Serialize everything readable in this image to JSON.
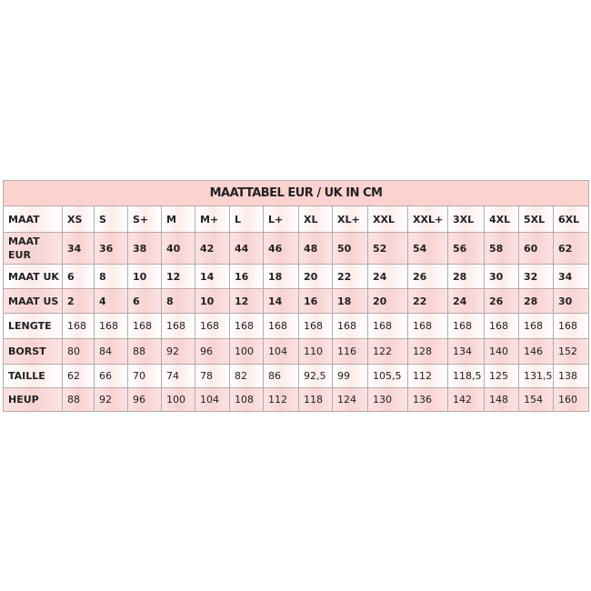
{
  "title": "MAATTABEL EUR / UK IN CM",
  "colors": {
    "title_bg": "#fcd2d1",
    "row_pink": "#f7d3d2",
    "row_light": "#fdeceb",
    "border": "#b9a9a8"
  },
  "rows": [
    {
      "label": "MAAT",
      "values": [
        "XS",
        "S",
        "S+",
        "M",
        "M+",
        "L",
        "L+",
        "XL",
        "XL+",
        "XXL",
        "XXL+",
        "3XL",
        "4XL",
        "5XL",
        "6XL"
      ]
    },
    {
      "label": "MAAT EUR",
      "values": [
        "34",
        "36",
        "38",
        "40",
        "42",
        "44",
        "46",
        "48",
        "50",
        "52",
        "54",
        "56",
        "58",
        "60",
        "62"
      ]
    },
    {
      "label": "MAAT UK",
      "values": [
        "6",
        "8",
        "10",
        "12",
        "14",
        "16",
        "18",
        "20",
        "22",
        "24",
        "26",
        "28",
        "30",
        "32",
        "34"
      ]
    },
    {
      "label": "MAAT US",
      "values": [
        "2",
        "4",
        "6",
        "8",
        "10",
        "12",
        "14",
        "16",
        "18",
        "20",
        "22",
        "24",
        "26",
        "28",
        "30"
      ]
    },
    {
      "label": "LENGTE",
      "values": [
        "168",
        "168",
        "168",
        "168",
        "168",
        "168",
        "168",
        "168",
        "168",
        "168",
        "168",
        "168",
        "168",
        "168",
        "168"
      ]
    },
    {
      "label": "BORST",
      "values": [
        "80",
        "84",
        "88",
        "92",
        "96",
        "100",
        "104",
        "110",
        "116",
        "122",
        "128",
        "134",
        "140",
        "146",
        "152"
      ]
    },
    {
      "label": "TAILLE",
      "values": [
        "62",
        "66",
        "70",
        "74",
        "78",
        "82",
        "86",
        "92,5",
        "99",
        "105,5",
        "112",
        "118,5",
        "125",
        "131,5",
        "138"
      ]
    },
    {
      "label": "HEUP",
      "values": [
        "88",
        "92",
        "96",
        "100",
        "104",
        "108",
        "112",
        "118",
        "124",
        "130",
        "136",
        "142",
        "148",
        "154",
        "160"
      ]
    }
  ]
}
